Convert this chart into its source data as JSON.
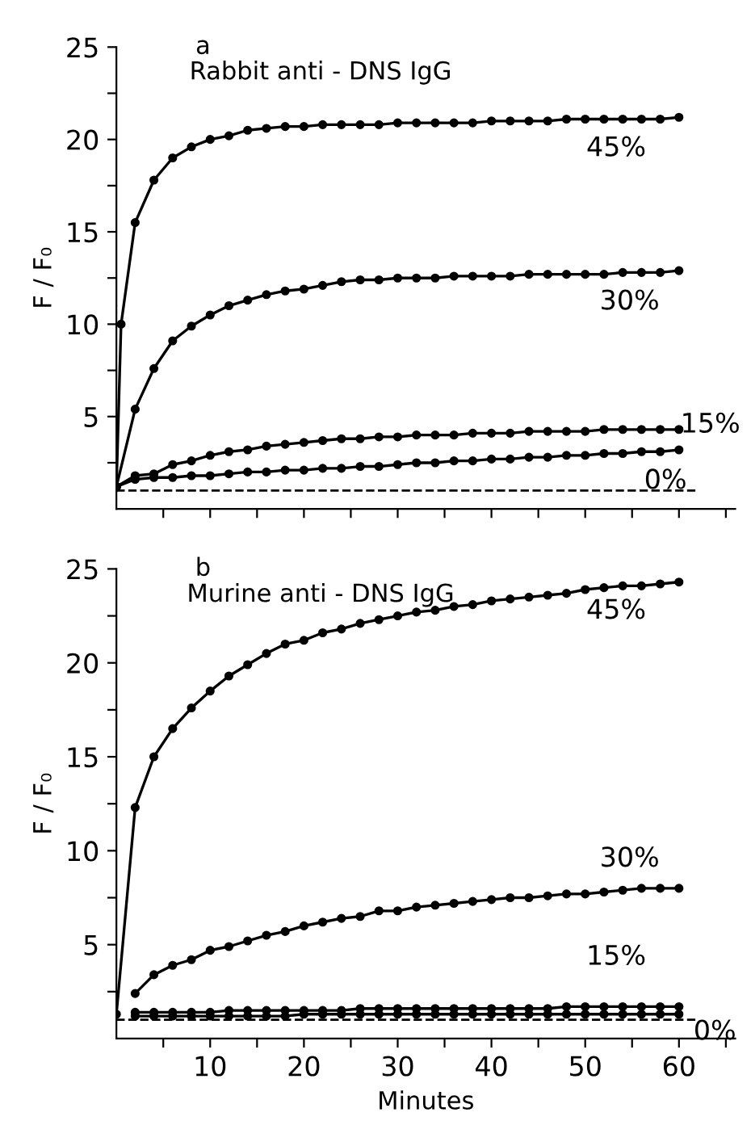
{
  "chart_data": [
    {
      "type": "line",
      "title": "Rabbit anti - DNS IgG",
      "ylabel": "F / F₀",
      "annotations": [
        "a"
      ],
      "x": [
        0,
        2,
        4,
        6,
        8,
        10,
        12,
        14,
        16,
        18,
        20,
        22,
        24,
        26,
        28,
        30,
        32,
        34,
        36,
        38,
        40,
        42,
        44,
        46,
        48,
        50,
        52,
        54,
        56,
        58,
        60
      ],
      "series": [
        {
          "name": "45%",
          "color": "#000000",
          "x": [
            0,
            0.5,
            2,
            4,
            6,
            8,
            10,
            12,
            14,
            16,
            18,
            20,
            22,
            24,
            26,
            28,
            30,
            32,
            34,
            36,
            38,
            40,
            42,
            44,
            46,
            48,
            50,
            52,
            54,
            56,
            58,
            60
          ],
          "values": [
            1.2,
            10,
            15.5,
            17.8,
            19.0,
            19.6,
            20.0,
            20.2,
            20.5,
            20.6,
            20.7,
            20.7,
            20.8,
            20.8,
            20.8,
            20.8,
            20.9,
            20.9,
            20.9,
            20.9,
            20.9,
            21.0,
            21.0,
            21.0,
            21.0,
            21.1,
            21.1,
            21.1,
            21.1,
            21.1,
            21.1,
            21.2
          ]
        },
        {
          "name": "30%",
          "color": "#000000",
          "values": [
            1.2,
            5.4,
            7.6,
            9.1,
            9.9,
            10.5,
            11.0,
            11.3,
            11.6,
            11.8,
            11.9,
            12.1,
            12.3,
            12.4,
            12.4,
            12.5,
            12.5,
            12.5,
            12.6,
            12.6,
            12.6,
            12.6,
            12.7,
            12.7,
            12.7,
            12.7,
            12.7,
            12.8,
            12.8,
            12.8,
            12.9
          ]
        },
        {
          "name": "15%",
          "color": "#000000",
          "values": [
            1.2,
            1.8,
            1.9,
            2.4,
            2.6,
            2.9,
            3.1,
            3.2,
            3.4,
            3.5,
            3.6,
            3.7,
            3.8,
            3.8,
            3.9,
            3.9,
            4.0,
            4.0,
            4.0,
            4.1,
            4.1,
            4.1,
            4.2,
            4.2,
            4.2,
            4.2,
            4.3,
            4.3,
            4.3,
            4.3,
            4.3
          ]
        },
        {
          "name": "0%",
          "color": "#000000",
          "values": [
            1.2,
            1.6,
            1.7,
            1.7,
            1.8,
            1.8,
            1.9,
            2.0,
            2.0,
            2.1,
            2.1,
            2.2,
            2.2,
            2.3,
            2.3,
            2.4,
            2.5,
            2.5,
            2.6,
            2.6,
            2.7,
            2.7,
            2.8,
            2.8,
            2.9,
            2.9,
            3.0,
            3.0,
            3.1,
            3.1,
            3.2
          ]
        }
      ],
      "marker": "circle",
      "line_style": "solid",
      "ref_lines": [
        {
          "axis": "y",
          "value": 1,
          "label": null,
          "color": "#000000",
          "line_style": "dashed"
        }
      ],
      "xlim": [
        0,
        66
      ],
      "xticks": [
        {
          "value": 5,
          "label": null
        },
        {
          "value": 10,
          "label": null
        },
        {
          "value": 15,
          "label": null
        },
        {
          "value": 20,
          "label": null
        },
        {
          "value": 25,
          "label": null
        },
        {
          "value": 30,
          "label": null
        },
        {
          "value": 35,
          "label": null
        },
        {
          "value": 40,
          "label": null
        },
        {
          "value": 45,
          "label": null
        },
        {
          "value": 50,
          "label": null
        },
        {
          "value": 55,
          "label": null
        },
        {
          "value": 60,
          "label": null
        },
        {
          "value": 65,
          "label": null
        }
      ],
      "ylim": [
        0,
        25
      ],
      "yticks": [
        {
          "value": 2.5,
          "label": null
        },
        5,
        {
          "value": 7.5,
          "label": null
        },
        10,
        {
          "value": 12.5,
          "label": null
        },
        15,
        {
          "value": 17.5,
          "label": null
        },
        20,
        {
          "value": 22.5,
          "label": null
        },
        25
      ],
      "tick_labels": "y",
      "grid": false,
      "legend": false
    },
    {
      "type": "line",
      "title": "Murine anti - DNS IgG",
      "xlabel": "Minutes",
      "ylabel": "F / F₀",
      "annotations": [
        "b"
      ],
      "x": [
        0,
        2,
        4,
        6,
        8,
        10,
        12,
        14,
        16,
        18,
        20,
        22,
        24,
        26,
        28,
        30,
        32,
        34,
        36,
        38,
        40,
        42,
        44,
        46,
        48,
        50,
        52,
        54,
        56,
        58,
        60
      ],
      "series": [
        {
          "name": "45%",
          "color": "#000000",
          "values": [
            1.3,
            12.3,
            15.0,
            16.5,
            17.6,
            18.5,
            19.3,
            19.9,
            20.5,
            21.0,
            21.2,
            21.6,
            21.8,
            22.1,
            22.3,
            22.5,
            22.7,
            22.8,
            23.0,
            23.1,
            23.3,
            23.4,
            23.5,
            23.6,
            23.7,
            23.9,
            24.0,
            24.1,
            24.1,
            24.2,
            24.3
          ]
        },
        {
          "name": "30%",
          "color": "#000000",
          "values": [
            null,
            2.4,
            3.4,
            3.9,
            4.2,
            4.7,
            4.9,
            5.2,
            5.5,
            5.7,
            6.0,
            6.2,
            6.4,
            6.5,
            6.8,
            6.8,
            7.0,
            7.1,
            7.2,
            7.3,
            7.4,
            7.5,
            7.5,
            7.6,
            7.7,
            7.7,
            7.8,
            7.9,
            8.0,
            8.0,
            8.0
          ]
        },
        {
          "name": "15%",
          "color": "#000000",
          "values": [
            null,
            1.4,
            1.4,
            1.4,
            1.4,
            1.4,
            1.5,
            1.5,
            1.5,
            1.5,
            1.5,
            1.5,
            1.5,
            1.6,
            1.6,
            1.6,
            1.6,
            1.6,
            1.6,
            1.6,
            1.6,
            1.6,
            1.6,
            1.6,
            1.7,
            1.7,
            1.7,
            1.7,
            1.7,
            1.7,
            1.7
          ]
        },
        {
          "name": "0%",
          "color": "#000000",
          "values": [
            null,
            1.2,
            1.2,
            1.2,
            1.2,
            1.2,
            1.2,
            1.2,
            1.2,
            1.2,
            1.3,
            1.3,
            1.3,
            1.3,
            1.3,
            1.3,
            1.3,
            1.3,
            1.3,
            1.3,
            1.3,
            1.3,
            1.3,
            1.3,
            1.3,
            1.3,
            1.3,
            1.3,
            1.3,
            1.3,
            1.3
          ]
        }
      ],
      "marker": "circle",
      "line_style": "solid",
      "ref_lines": [
        {
          "axis": "y",
          "value": 1,
          "label": null,
          "color": "#000000",
          "line_style": "dashed"
        }
      ],
      "xlim": [
        0,
        66
      ],
      "xticks": [
        {
          "value": 5,
          "label": null
        },
        10,
        {
          "value": 15,
          "label": null
        },
        20,
        {
          "value": 25,
          "label": null
        },
        30,
        {
          "value": 35,
          "label": null
        },
        40,
        {
          "value": 45,
          "label": null
        },
        50,
        {
          "value": 55,
          "label": null
        },
        60,
        {
          "value": 65,
          "label": null
        }
      ],
      "ylim": [
        0,
        25
      ],
      "yticks": [
        {
          "value": 2.5,
          "label": null
        },
        5,
        {
          "value": 7.5,
          "label": null
        },
        10,
        {
          "value": 12.5,
          "label": null
        },
        15,
        {
          "value": 17.5,
          "label": null
        },
        20,
        {
          "value": 22.5,
          "label": null
        },
        25
      ],
      "grid": false,
      "legend": false
    }
  ]
}
